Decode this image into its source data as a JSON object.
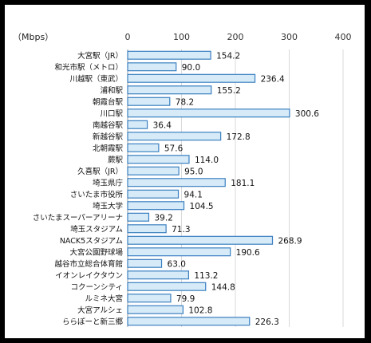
{
  "chart_data": {
    "type": "bar",
    "orientation": "horizontal",
    "unit_label": "（Mbps）",
    "xlim": [
      0,
      400
    ],
    "xticks": [
      0,
      100,
      200,
      300,
      400
    ],
    "grid": true,
    "colors": {
      "bar_fill": "#d6ebf7",
      "bar_edge": "#3a7fc1"
    },
    "categories": [
      "大宮駅（JR）",
      "和光市駅（メトロ）",
      "川越駅（東武）",
      "浦和駅",
      "朝霞台駅",
      "川口駅",
      "南越谷駅",
      "新越谷駅",
      "北朝霞駅",
      "蕨駅",
      "久喜駅（JR）",
      "埼玉県庁",
      "さいたま市役所",
      "埼玉大学",
      "さいたまスーパーアリーナ",
      "埼玉スタジアム",
      "NACK5スタジアム",
      "大宮公園野球場",
      "越谷市立総合体育館",
      "イオンレイクタウン",
      "コクーンシティ",
      "ルミネ大宮",
      "大宮アルシェ",
      "ららぽーと新三郷"
    ],
    "values": [
      154.2,
      90.0,
      236.4,
      155.2,
      78.2,
      300.6,
      36.4,
      172.8,
      57.6,
      114.0,
      95.0,
      181.1,
      94.1,
      104.5,
      39.2,
      71.3,
      268.9,
      190.6,
      63.0,
      113.2,
      144.8,
      79.9,
      102.8,
      226.3
    ],
    "value_labels": [
      "154.2",
      "90.0",
      "236.4",
      "155.2",
      "78.2",
      "300.6",
      "36.4",
      "172.8",
      "57.6",
      "114.0",
      "95.0",
      "181.1",
      "94.1",
      "104.5",
      "39.2",
      "71.3",
      "268.9",
      "190.6",
      "63.0",
      "113.2",
      "144.8",
      "79.9",
      "102.8",
      "226.3"
    ]
  }
}
